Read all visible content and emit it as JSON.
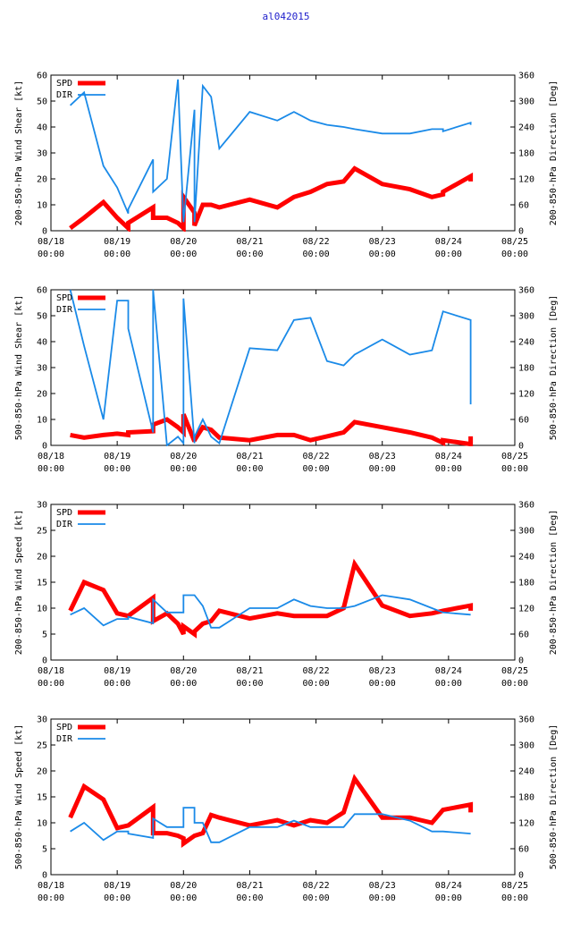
{
  "title": "al042015",
  "colors": {
    "spd": "#ff0000",
    "dir": "#1a8ae8",
    "title": "#2020cc",
    "axis": "#000000"
  },
  "x_ticks": [
    {
      "line1": "08/18",
      "line2": "00:00",
      "t": 0
    },
    {
      "line1": "08/19",
      "line2": "00:00",
      "t": 24
    },
    {
      "line1": "08/20",
      "line2": "00:00",
      "t": 48
    },
    {
      "line1": "08/21",
      "line2": "00:00",
      "t": 72
    },
    {
      "line1": "08/22",
      "line2": "00:00",
      "t": 96
    },
    {
      "line1": "08/23",
      "line2": "00:00",
      "t": 120
    },
    {
      "line1": "08/24",
      "line2": "00:00",
      "t": 144
    },
    {
      "line1": "08/25",
      "line2": "00:00",
      "t": 168
    }
  ],
  "legend": {
    "spd_label": "SPD",
    "dir_label": "DIR"
  },
  "chart_data": [
    {
      "type": "line",
      "ylabel": "200-850-hPa Wind Shear [kt]",
      "y2label": "200-850-hPa Direction [Deg]",
      "xlim": [
        0,
        168
      ],
      "ylim": [
        0,
        60
      ],
      "y2lim": [
        0,
        360
      ],
      "yticks": [
        0,
        10,
        20,
        30,
        40,
        50,
        60
      ],
      "y2ticks": [
        0,
        60,
        120,
        180,
        240,
        300,
        360
      ],
      "series": [
        {
          "name": "SPD",
          "axis": "left",
          "x": [
            7,
            12,
            19,
            24,
            28,
            28,
            37,
            37,
            42,
            46,
            48,
            48,
            52,
            52,
            55,
            58,
            61,
            72,
            82,
            88,
            94,
            100,
            106,
            110,
            120,
            130,
            138,
            142,
            142,
            152,
            152
          ],
          "y": [
            1,
            5,
            11,
            5,
            1,
            3,
            9,
            5,
            5,
            3,
            1,
            13,
            7,
            2,
            10,
            10,
            9,
            12,
            9,
            13,
            15,
            18,
            19,
            24,
            18,
            16,
            13,
            14,
            15,
            21,
            19
          ]
        },
        {
          "name": "DIR",
          "axis": "right",
          "x": [
            7,
            12,
            19,
            24,
            28,
            28,
            37,
            37,
            42,
            46,
            48,
            48,
            52,
            52,
            55,
            58,
            61,
            72,
            82,
            88,
            94,
            100,
            106,
            110,
            120,
            130,
            138,
            142,
            142,
            152,
            152
          ],
          "y": [
            290,
            320,
            150,
            100,
            40,
            50,
            165,
            90,
            120,
            350,
            20,
            20,
            280,
            20,
            335,
            310,
            190,
            275,
            255,
            275,
            255,
            245,
            240,
            235,
            225,
            225,
            235,
            235,
            230,
            250,
            245
          ]
        }
      ]
    },
    {
      "type": "line",
      "ylabel": "500-850-hPa Wind Shear [kt]",
      "y2label": "500-850-hPa Direction [Deg]",
      "xlim": [
        0,
        168
      ],
      "ylim": [
        0,
        60
      ],
      "y2lim": [
        0,
        360
      ],
      "yticks": [
        0,
        10,
        20,
        30,
        40,
        50,
        60
      ],
      "y2ticks": [
        0,
        60,
        120,
        180,
        240,
        300,
        360
      ],
      "series": [
        {
          "name": "SPD",
          "axis": "left",
          "x": [
            7,
            12,
            19,
            24,
            28,
            28,
            37,
            37,
            42,
            46,
            48,
            48,
            52,
            52,
            55,
            58,
            61,
            72,
            82,
            88,
            94,
            100,
            106,
            110,
            120,
            130,
            138,
            142,
            142,
            152,
            152
          ],
          "y": [
            4,
            3,
            4,
            4.5,
            4,
            5,
            5.5,
            8,
            10,
            7,
            5,
            12,
            1.5,
            2,
            7,
            6,
            3,
            2,
            4,
            4,
            2,
            3.5,
            5,
            9,
            7,
            5,
            3,
            1,
            2,
            0.5,
            3.5
          ]
        },
        {
          "name": "DIR",
          "axis": "right",
          "x": [
            7,
            12,
            19,
            24,
            28,
            28,
            37,
            37,
            42,
            46,
            48,
            48,
            52,
            52,
            55,
            58,
            61,
            72,
            82,
            88,
            94,
            100,
            106,
            110,
            120,
            130,
            138,
            142,
            142,
            152,
            152
          ],
          "y": [
            360,
            230,
            60,
            335,
            335,
            270,
            30,
            360,
            0,
            20,
            5,
            340,
            5,
            20,
            60,
            20,
            5,
            225,
            220,
            290,
            295,
            195,
            185,
            210,
            245,
            210,
            220,
            310,
            310,
            290,
            95
          ]
        }
      ]
    },
    {
      "type": "line",
      "ylabel": "200-850-hPa Wind Speed [kt]",
      "y2label": "200-850-hPa Direction [Deg]",
      "xlim": [
        0,
        168
      ],
      "ylim": [
        0,
        30
      ],
      "y2lim": [
        0,
        360
      ],
      "yticks": [
        0,
        5,
        10,
        15,
        20,
        25,
        30
      ],
      "y2ticks": [
        0,
        60,
        120,
        180,
        240,
        300,
        360
      ],
      "series": [
        {
          "name": "SPD",
          "axis": "left",
          "x": [
            7,
            12,
            19,
            24,
            28,
            28,
            37,
            37,
            42,
            46,
            48,
            48,
            52,
            52,
            55,
            58,
            61,
            72,
            82,
            88,
            94,
            100,
            106,
            110,
            120,
            130,
            138,
            142,
            142,
            152,
            152
          ],
          "y": [
            9.5,
            15,
            13.5,
            9,
            8.5,
            8.5,
            12,
            7.5,
            9,
            7,
            5,
            6.5,
            5,
            5.5,
            7,
            7.5,
            9.5,
            8,
            9,
            8.5,
            8.5,
            8.5,
            10,
            18.5,
            10.5,
            8.5,
            9,
            9.5,
            9.5,
            10.5,
            9.5
          ]
        },
        {
          "name": "DIR",
          "axis": "right",
          "x": [
            7,
            12,
            19,
            24,
            28,
            28,
            37,
            37,
            42,
            46,
            48,
            48,
            52,
            52,
            55,
            58,
            61,
            72,
            82,
            88,
            94,
            100,
            106,
            110,
            120,
            130,
            138,
            142,
            142,
            152,
            152
          ],
          "y": [
            105,
            120,
            80,
            95,
            95,
            100,
            85,
            140,
            110,
            110,
            110,
            150,
            150,
            150,
            125,
            75,
            75,
            120,
            120,
            140,
            125,
            120,
            120,
            125,
            150,
            140,
            120,
            110,
            110,
            105,
            105
          ]
        }
      ]
    },
    {
      "type": "line",
      "ylabel": "500-850-hPa Wind Speed [kt]",
      "y2label": "500-850-hPa Direction [Deg]",
      "xlim": [
        0,
        168
      ],
      "ylim": [
        0,
        30
      ],
      "y2lim": [
        0,
        360
      ],
      "yticks": [
        0,
        5,
        10,
        15,
        20,
        25,
        30
      ],
      "y2ticks": [
        0,
        60,
        120,
        180,
        240,
        300,
        360
      ],
      "series": [
        {
          "name": "SPD",
          "axis": "left",
          "x": [
            7,
            12,
            19,
            24,
            28,
            28,
            37,
            37,
            42,
            46,
            48,
            48,
            52,
            52,
            55,
            58,
            61,
            72,
            82,
            88,
            94,
            100,
            106,
            110,
            120,
            130,
            138,
            142,
            142,
            152,
            152
          ],
          "y": [
            11,
            17,
            14.5,
            9,
            9.5,
            9.5,
            13,
            8,
            8,
            7.5,
            7,
            6,
            7.5,
            7.5,
            8,
            11.5,
            11,
            9.5,
            10.5,
            9.5,
            10.5,
            10,
            12,
            18.5,
            11,
            11,
            10,
            12.5,
            12.5,
            13.5,
            12
          ]
        },
        {
          "name": "DIR",
          "axis": "right",
          "x": [
            7,
            12,
            19,
            24,
            28,
            28,
            37,
            37,
            42,
            46,
            48,
            48,
            52,
            52,
            55,
            58,
            61,
            72,
            82,
            88,
            94,
            100,
            106,
            110,
            120,
            130,
            138,
            142,
            142,
            152,
            152
          ],
          "y": [
            100,
            120,
            80,
            100,
            100,
            95,
            85,
            130,
            110,
            110,
            110,
            155,
            155,
            120,
            120,
            75,
            75,
            110,
            110,
            125,
            110,
            110,
            110,
            140,
            140,
            125,
            100,
            100,
            100,
            95,
            95
          ]
        }
      ]
    }
  ]
}
